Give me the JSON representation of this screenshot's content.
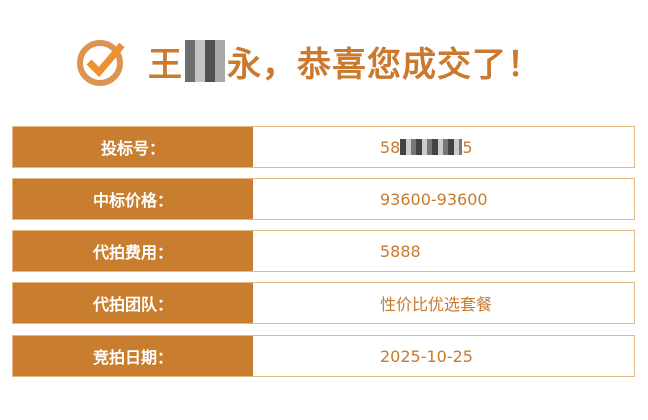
{
  "header": {
    "name_prefix": "王",
    "name_suffix": "永",
    "message": "，恭喜您成交了！",
    "icon": "check-circle-icon",
    "color": "#c97a2e"
  },
  "rows": [
    {
      "label": "投标号：",
      "value_prefix": "58",
      "value_suffix": "5"
    },
    {
      "label": "中标价格：",
      "value": "93600-93600"
    },
    {
      "label": "代拍费用：",
      "value": "5888"
    },
    {
      "label": "代拍团队：",
      "value": "性价比优选套餐"
    },
    {
      "label": "竞拍日期：",
      "value": "2025-10-25"
    }
  ],
  "colors": {
    "label_bg": "#c97d2e",
    "border": "#e2b887"
  }
}
